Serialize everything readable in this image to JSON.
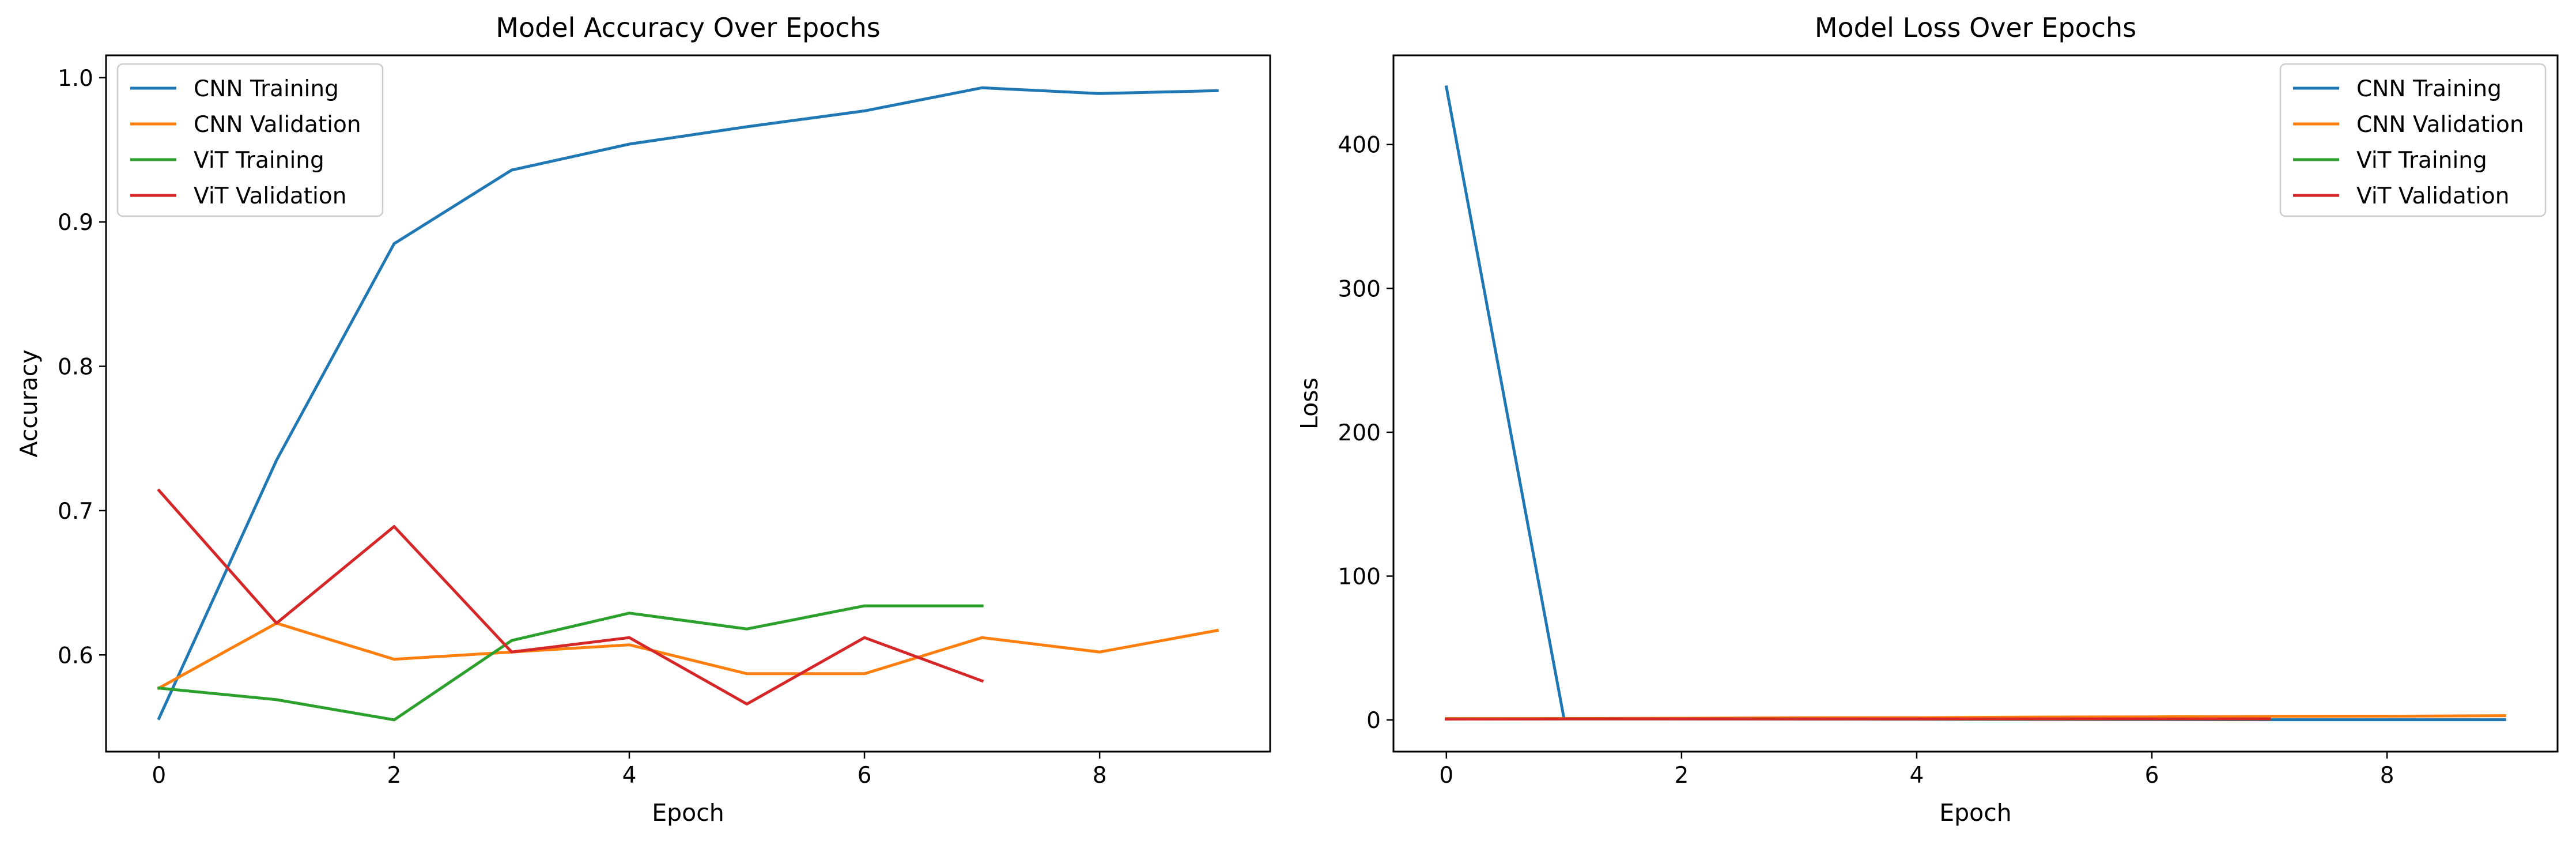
{
  "colors": {
    "cnn_training": "#1f77b4",
    "cnn_validation": "#ff7f0e",
    "vit_training": "#2ca02c",
    "vit_validation": "#d62728"
  },
  "chart_data": [
    {
      "id": "accuracy",
      "type": "line",
      "title": "Model Accuracy Over Epochs",
      "xlabel": "Epoch",
      "ylabel": "Accuracy",
      "xlim": [
        -0.45,
        9.45
      ],
      "ylim": [
        0.533,
        1.0155
      ],
      "xticks": [
        0,
        2,
        4,
        6,
        8
      ],
      "yticks": [
        0.6,
        0.7,
        0.8,
        0.9,
        1.0
      ],
      "ytick_labels": [
        "0.6",
        "0.7",
        "0.8",
        "0.9",
        "1.0"
      ],
      "grid": false,
      "legend_position": "upper left",
      "series": [
        {
          "name": "CNN Training",
          "color": "#1f77b4",
          "x": [
            0,
            1,
            2,
            3,
            4,
            5,
            6,
            7,
            8,
            9
          ],
          "y": [
            0.556,
            0.735,
            0.885,
            0.936,
            0.954,
            0.966,
            0.977,
            0.993,
            0.989,
            0.991
          ]
        },
        {
          "name": "CNN Validation",
          "color": "#ff7f0e",
          "x": [
            0,
            1,
            2,
            3,
            4,
            5,
            6,
            7,
            8,
            9
          ],
          "y": [
            0.577,
            0.622,
            0.597,
            0.602,
            0.607,
            0.587,
            0.587,
            0.612,
            0.602,
            0.617
          ]
        },
        {
          "name": "ViT Training",
          "color": "#2ca02c",
          "x": [
            0,
            1,
            2,
            3,
            4,
            5,
            6,
            7
          ],
          "y": [
            0.577,
            0.569,
            0.555,
            0.61,
            0.629,
            0.618,
            0.634,
            0.634
          ]
        },
        {
          "name": "ViT Validation",
          "color": "#d62728",
          "x": [
            0,
            1,
            2,
            3,
            4,
            5,
            6,
            7
          ],
          "y": [
            0.714,
            0.622,
            0.689,
            0.602,
            0.612,
            0.566,
            0.612,
            0.582
          ]
        }
      ]
    },
    {
      "id": "loss",
      "type": "line",
      "title": "Model Loss Over Epochs",
      "xlabel": "Epoch",
      "ylabel": "Loss",
      "xlim": [
        -0.45,
        9.45
      ],
      "ylim": [
        -22,
        462
      ],
      "xticks": [
        0,
        2,
        4,
        6,
        8
      ],
      "yticks": [
        0,
        100,
        200,
        300,
        400
      ],
      "ytick_labels": [
        "0",
        "100",
        "200",
        "300",
        "400"
      ],
      "grid": false,
      "legend_position": "upper right",
      "series": [
        {
          "name": "CNN Training",
          "color": "#1f77b4",
          "x": [
            0,
            1,
            2,
            3,
            4,
            5,
            6,
            7,
            8,
            9
          ],
          "y": [
            440,
            1.0,
            0.8,
            0.6,
            0.5,
            0.4,
            0.3,
            0.2,
            0.2,
            0.2
          ]
        },
        {
          "name": "CNN Validation",
          "color": "#ff7f0e",
          "x": [
            0,
            1,
            2,
            3,
            4,
            5,
            6,
            7,
            8,
            9
          ],
          "y": [
            1.0,
            1.0,
            1.2,
            1.5,
            1.6,
            2.0,
            2.2,
            2.5,
            2.6,
            3.0
          ]
        },
        {
          "name": "ViT Training",
          "color": "#2ca02c",
          "x": [
            0,
            1,
            2,
            3,
            4,
            5,
            6,
            7
          ],
          "y": [
            0.7,
            0.7,
            0.7,
            0.7,
            0.6,
            0.6,
            0.6,
            0.6
          ]
        },
        {
          "name": "ViT Validation",
          "color": "#d62728",
          "x": [
            0,
            1,
            2,
            3,
            4,
            5,
            6,
            7
          ],
          "y": [
            0.6,
            0.7,
            0.7,
            0.7,
            0.7,
            0.7,
            0.7,
            0.7
          ]
        }
      ]
    }
  ]
}
